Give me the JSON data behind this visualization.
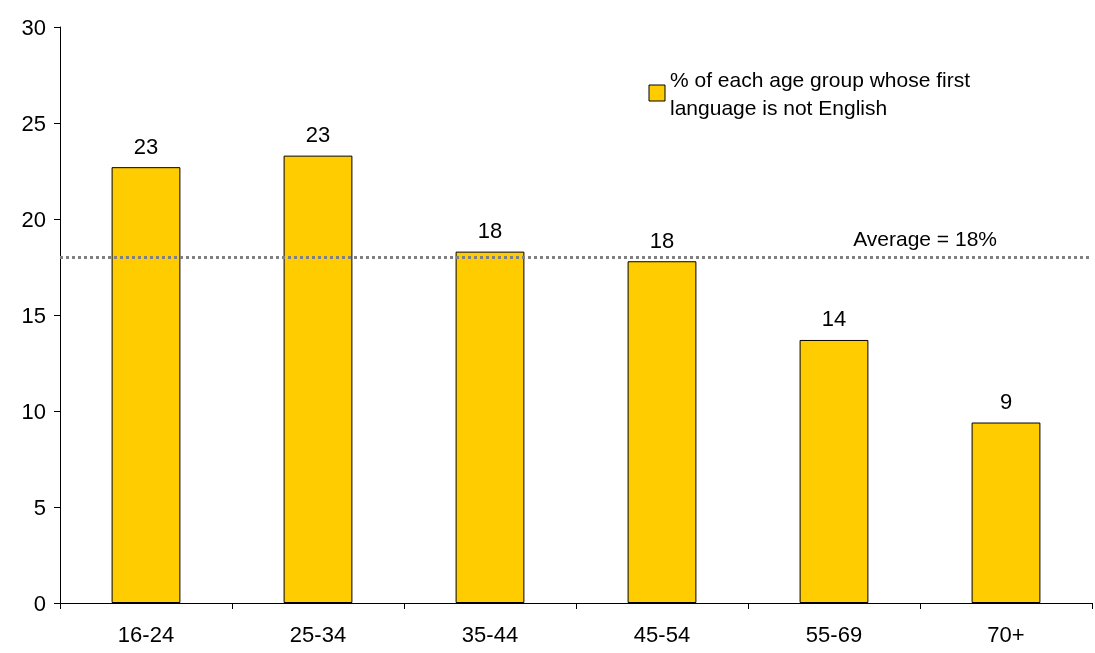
{
  "chart_data": {
    "type": "bar",
    "categories": [
      "16-24",
      "25-34",
      "35-44",
      "45-54",
      "55-69",
      "70+"
    ],
    "series": [
      {
        "name": "% of each age group whose first language is not English",
        "color": "#ffcc00",
        "values": [
          22.7,
          23.3,
          18.3,
          17.8,
          13.7,
          9.4
        ],
        "value_labels": [
          "23",
          "23",
          "18",
          "18",
          "14",
          "9"
        ]
      }
    ],
    "ylim": [
      0,
      30
    ],
    "yticks": [
      0,
      5,
      10,
      15,
      20,
      25,
      30
    ],
    "grid": false,
    "legend": "top right",
    "ref_lines": [
      {
        "axis": "y",
        "value": 18,
        "label": "Average = 18%",
        "color": "#808080",
        "line_style": "dotted"
      }
    ]
  }
}
